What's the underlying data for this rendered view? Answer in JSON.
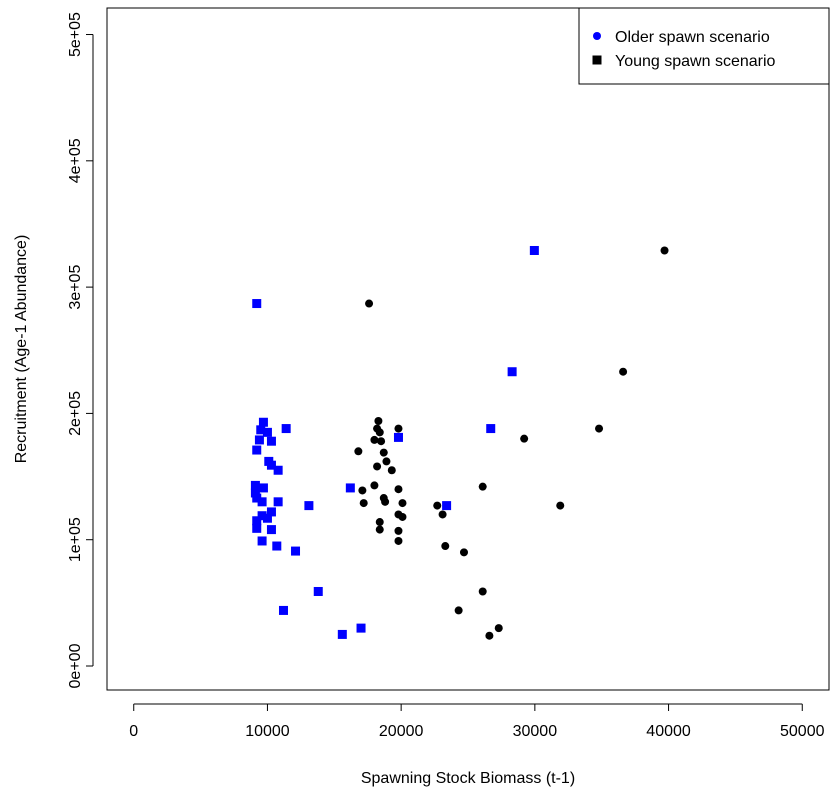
{
  "chart_data": {
    "type": "scatter",
    "xlabel": "Spawning Stock Biomass (t-1)",
    "ylabel": "Recruitment (Age-1 Abundance)",
    "xlim": [
      -2000,
      52000
    ],
    "ylim": [
      -19000,
      521000
    ],
    "xticks": [
      0,
      10000,
      20000,
      30000,
      40000,
      50000
    ],
    "yticks": [
      {
        "value": 0,
        "label": "0e+00"
      },
      {
        "value": 100000,
        "label": "1e+05"
      },
      {
        "value": 200000,
        "label": "2e+05"
      },
      {
        "value": 300000,
        "label": "3e+05"
      },
      {
        "value": 400000,
        "label": "4e+05"
      },
      {
        "value": 500000,
        "label": "5e+05"
      }
    ],
    "legend": "top-right",
    "series": [
      {
        "name": "Older spawn scenario",
        "color": "#0000ff",
        "marker": "square",
        "legend_marker": "circle",
        "x": [
          29963,
          9200,
          28300,
          26700,
          11400,
          19800,
          9700,
          9500,
          10000,
          9400,
          10300,
          9200,
          10100,
          10300,
          10800,
          16200,
          9100,
          9700,
          9100,
          9200,
          9600,
          10800,
          13100,
          23400,
          10300,
          9600,
          10000,
          9200,
          9200,
          10300,
          9600,
          10700,
          12100,
          13800,
          11200,
          17000,
          15600
        ],
        "values": [
          329000,
          287000,
          233000,
          188000,
          188000,
          181000,
          193000,
          187000,
          185000,
          179000,
          178000,
          171000,
          162000,
          159000,
          155000,
          141000,
          143000,
          141000,
          137000,
          133000,
          130000,
          130000,
          127000,
          127000,
          122000,
          119000,
          117000,
          115000,
          109000,
          108000,
          99000,
          95000,
          91000,
          59000,
          44000,
          30000,
          25000
        ]
      },
      {
        "name": "Young spawn scenario",
        "color": "#000000",
        "marker": "circle",
        "legend_marker": "square",
        "x": [
          39700,
          17600,
          36600,
          34800,
          29200,
          19800,
          18300,
          18200,
          18400,
          18000,
          18500,
          16800,
          18700,
          18900,
          18200,
          19300,
          26100,
          18000,
          17100,
          19800,
          18700,
          18800,
          20100,
          17200,
          22700,
          31900,
          23100,
          19800,
          20100,
          18400,
          18400,
          19800,
          19800,
          23300,
          24700,
          26100,
          24300,
          27300,
          26600
        ],
        "values": [
          329000,
          287000,
          233000,
          188000,
          180000,
          188000,
          194000,
          188000,
          185000,
          179000,
          178000,
          170000,
          169000,
          162000,
          158000,
          155000,
          142000,
          143000,
          139000,
          140000,
          133000,
          130000,
          129000,
          129000,
          127000,
          127000,
          120000,
          120000,
          118000,
          114000,
          108000,
          107000,
          99000,
          95000,
          90000,
          59000,
          44000,
          30000,
          24000
        ]
      }
    ]
  }
}
